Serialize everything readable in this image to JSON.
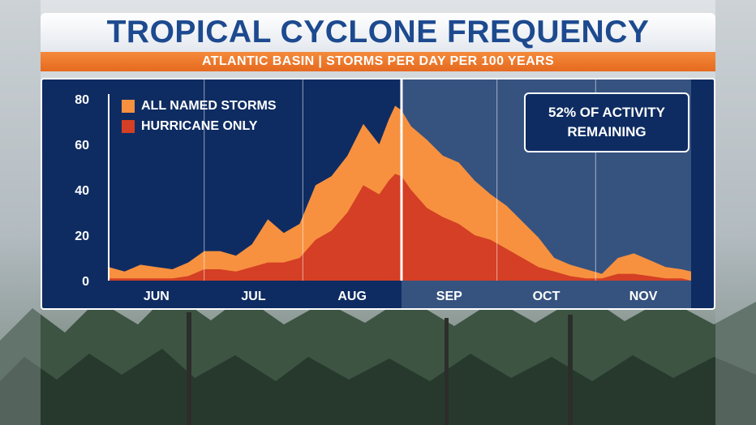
{
  "title": "TROPICAL CYCLONE FREQUENCY",
  "subtitle": "ATLANTIC BASIN | STORMS PER DAY PER 100 YEARS",
  "callout": "52% OF ACTIVITY\nREMAINING",
  "colors": {
    "title_text": "#1d4a8f",
    "subtitle_bar": "#ef7a2b",
    "panel_bg": "#0e2c62",
    "remaining_shade": "#3d5a86",
    "all_named": "#f7913f",
    "hurricane": "#d43f25"
  },
  "chart_data": {
    "type": "area",
    "title": "TROPICAL CYCLONE FREQUENCY",
    "subtitle": "ATLANTIC BASIN | STORMS PER DAY PER 100 YEARS",
    "xlabel": "",
    "ylabel": "",
    "ylim": [
      0,
      80
    ],
    "yticks": [
      0,
      20,
      40,
      60,
      80
    ],
    "xtick_labels": [
      "JUN",
      "JUL",
      "AUG",
      "SEP",
      "OCT",
      "NOV"
    ],
    "x_unit": "day of season (Jun 1 = 0)",
    "xlim": [
      0,
      183
    ],
    "grid": "vertical lines at month starts",
    "legend_position": "top-left",
    "current_marker_day": 92,
    "shaded_region": [
      92,
      183
    ],
    "series": [
      {
        "name": "ALL NAMED STORMS",
        "color": "#f7913f",
        "x": [
          0,
          5,
          10,
          15,
          20,
          25,
          30,
          35,
          40,
          45,
          50,
          55,
          60,
          65,
          70,
          75,
          80,
          85,
          88,
          90,
          92,
          95,
          100,
          105,
          110,
          115,
          120,
          125,
          130,
          135,
          140,
          145,
          150,
          155,
          160,
          165,
          170,
          175,
          180,
          183
        ],
        "values": [
          6,
          4,
          7,
          6,
          5,
          8,
          13,
          13,
          11,
          16,
          27,
          21,
          25,
          42,
          46,
          55,
          69,
          60,
          71,
          77,
          75,
          68,
          62,
          55,
          52,
          44,
          38,
          33,
          26,
          19,
          10,
          7,
          5,
          3,
          10,
          12,
          9,
          6,
          5,
          4
        ]
      },
      {
        "name": "HURRICANE ONLY",
        "color": "#d43f25",
        "x": [
          0,
          5,
          10,
          15,
          20,
          25,
          30,
          35,
          40,
          45,
          50,
          55,
          60,
          65,
          70,
          75,
          80,
          85,
          88,
          90,
          92,
          95,
          100,
          105,
          110,
          115,
          120,
          125,
          130,
          135,
          140,
          145,
          150,
          155,
          160,
          165,
          170,
          175,
          180,
          183
        ],
        "values": [
          1,
          1,
          1,
          1,
          1,
          2,
          5,
          5,
          4,
          6,
          8,
          8,
          10,
          18,
          22,
          30,
          42,
          38,
          44,
          47,
          46,
          40,
          32,
          28,
          25,
          20,
          18,
          14,
          10,
          6,
          4,
          2,
          1,
          1,
          3,
          3,
          2,
          1,
          1,
          0
        ]
      }
    ]
  }
}
